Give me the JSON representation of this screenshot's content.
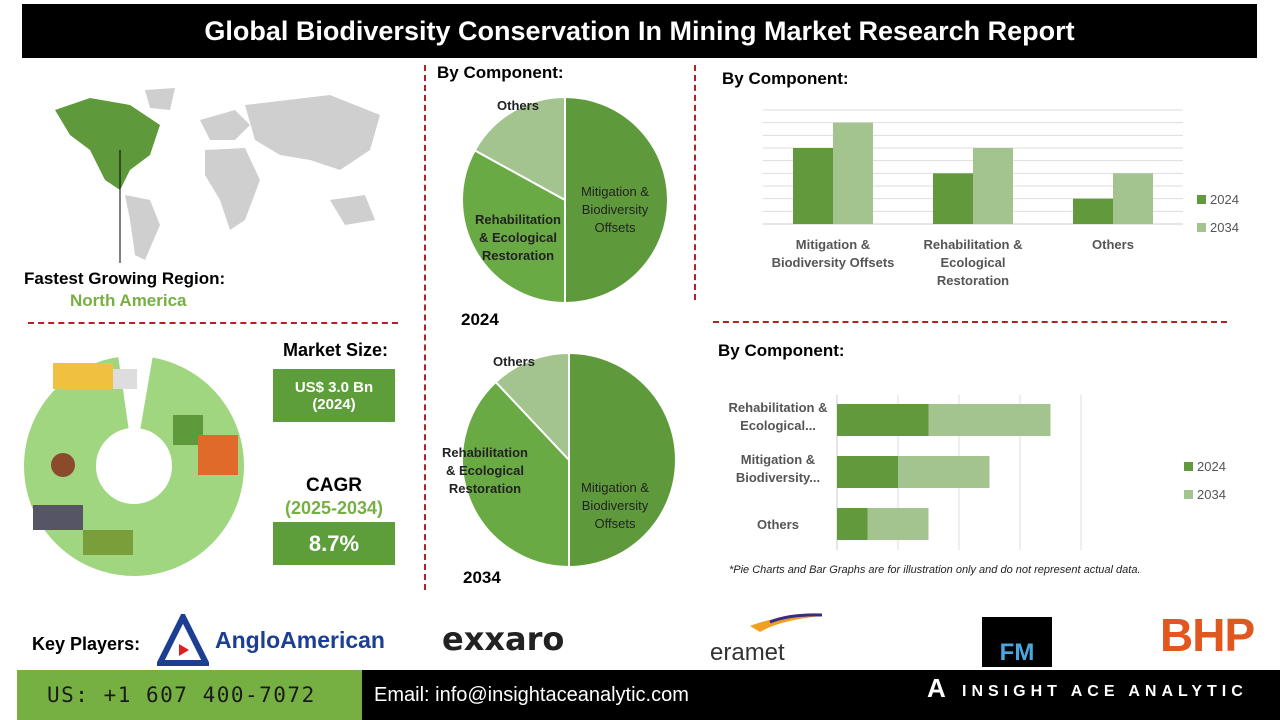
{
  "title": "Global Biodiversity Conservation In Mining Market Research Report",
  "region": {
    "label": "Fastest Growing Region:",
    "value": "North America"
  },
  "market_size": {
    "label": "Market Size:",
    "value": "US$ 3.0 Bn",
    "year": "(2024)"
  },
  "cagr": {
    "label": "CAGR",
    "period": "(2025-2034)",
    "value": "8.7%"
  },
  "colors": {
    "dark_green": "#5e9a3c",
    "light_green": "#a3c48f",
    "accent_green": "#76b043",
    "divider_red": "#b22222",
    "brand_orange": "#e0571f"
  },
  "chart_data": [
    {
      "type": "pie",
      "title": "By Component:",
      "year_label": "2024",
      "categories": [
        "Mitigation & Biodiversity Offsets",
        "Rehabilitation & Ecological Restoration",
        "Others"
      ],
      "values": [
        50,
        33,
        17
      ]
    },
    {
      "type": "pie",
      "year_label": "2034",
      "categories": [
        "Mitigation & Biodiversity Offsets",
        "Rehabilitation & Ecological Restoration",
        "Others"
      ],
      "values": [
        50,
        38,
        12
      ]
    },
    {
      "type": "bar",
      "title": "By Component:",
      "orientation": "vertical",
      "grid": true,
      "legend": "right",
      "categories": [
        "Mitigation & Biodiversity Offsets",
        "Rehabilitation & Ecological Restoration",
        "Others"
      ],
      "series": [
        {
          "name": "2024",
          "values": [
            6,
            4,
            2
          ]
        },
        {
          "name": "2034",
          "values": [
            8,
            6,
            4
          ]
        }
      ],
      "ylim": [
        0,
        9
      ]
    },
    {
      "type": "bar",
      "title": "By Component:",
      "orientation": "horizontal",
      "stacked": true,
      "grid": true,
      "legend": "right",
      "categories": [
        "Rehabilitation & Ecological...",
        "Mitigation & Biodiversity...",
        "Others"
      ],
      "series": [
        {
          "name": "2024",
          "values": [
            3,
            2,
            1
          ]
        },
        {
          "name": "2034",
          "values": [
            4,
            3,
            2
          ]
        }
      ],
      "xlim": [
        0,
        8
      ]
    }
  ],
  "note": "*Pie Charts and Bar Graphs are for illustration only and do not represent actual data.",
  "key_players": {
    "label": "Key Players:",
    "logos": [
      "AngloAmerican",
      "exxaro",
      "eramet",
      "FM",
      "BHP"
    ]
  },
  "footer": {
    "phone": "US: +1 607 400-7072",
    "email": "Email: info@insightaceanalytic.com",
    "brand": "INSIGHT ACE ANALYTIC"
  }
}
